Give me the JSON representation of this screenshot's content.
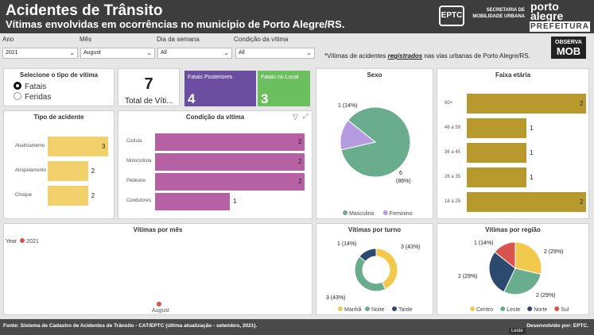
{
  "header": {
    "title": "Acidentes de Trânsito",
    "subtitle": "Vítimas envolvidas em ocorrências no município de Porto Alegre/RS.",
    "eptc": "EPTC",
    "secretaria": [
      "SECRETARIA DE",
      "MOBILIDADE URBANA"
    ],
    "porto_alegre": [
      "porto",
      "alegre"
    ],
    "prefeitura": "PREFEITURA"
  },
  "filters": [
    {
      "label": "Ano",
      "value": "2021"
    },
    {
      "label": "Mês",
      "value": "August"
    },
    {
      "label": "Dia da semana",
      "value": "All"
    },
    {
      "label": "Condição da vítima",
      "value": "All"
    }
  ],
  "note": {
    "pre": "*Vítimas de acidentes ",
    "bold": "registrados",
    "post": " nas vias urbanas de Porto Alegre/RS."
  },
  "observa": {
    "top": "OBSERVA",
    "bottom": "MOB"
  },
  "victim_type": {
    "title": "Selecione o tipo de vítima",
    "options": [
      "Fatais",
      "Feridas"
    ],
    "selected": "Fatais"
  },
  "total": {
    "value": "7",
    "label": "Total de Víti..."
  },
  "fatais_posteriores": {
    "label": "Fatais Posteriores",
    "value": "4",
    "color": "#6b4ea0"
  },
  "fatais_local": {
    "label": "Fatais no Local",
    "value": "3",
    "color": "#6cbf5e"
  },
  "colors": {
    "yellow": "#f2d06b",
    "purple": "#b561a4",
    "green": "#6aad8e",
    "lavender": "#b59be0",
    "gold": "#b8992e",
    "red": "#d9534f",
    "navy": "#2b4a6e",
    "leste": "#6aad8e",
    "centro": "#f2c94c"
  },
  "chart_data": [
    {
      "type": "bar",
      "orientation": "horizontal",
      "title": "Tipo de acidente",
      "categories": [
        "Abalroamento",
        "Atropelamento",
        "Choque"
      ],
      "values": [
        3,
        2,
        2
      ],
      "xlim": [
        0,
        3
      ]
    },
    {
      "type": "bar",
      "orientation": "horizontal",
      "title": "Condição da vítima",
      "categories": [
        "Ciclista",
        "Motociclista",
        "Pedestre",
        "Condutores"
      ],
      "values": [
        2,
        2,
        2,
        1
      ],
      "xlim": [
        0,
        2
      ]
    },
    {
      "type": "pie",
      "title": "Sexo",
      "categories": [
        "Masculino",
        "Feminino"
      ],
      "values": [
        6,
        1
      ],
      "labels": [
        "6\n(86%)",
        "1 (14%)"
      ]
    },
    {
      "type": "bar",
      "orientation": "horizontal",
      "title": "Faixa etária",
      "categories": [
        "60+",
        "46 a 59",
        "36 a 45",
        "26 a 35",
        "18 a 25"
      ],
      "values": [
        2,
        1,
        1,
        1,
        2
      ],
      "xlim": [
        0,
        2
      ]
    },
    {
      "type": "line",
      "title": "Vítimas por mês",
      "legend_title": "Year",
      "series": [
        {
          "name": "2021",
          "values": [
            7
          ]
        }
      ],
      "x": [
        "August"
      ]
    },
    {
      "type": "pie",
      "donut": true,
      "title": "Vítimas por turno",
      "categories": [
        "Manhã",
        "Noite",
        "Tarde"
      ],
      "values": [
        3,
        3,
        1
      ],
      "labels": [
        "3 (43%)",
        "3 (43%)",
        "1 (14%)"
      ]
    },
    {
      "type": "pie",
      "title": "Vítimas por região",
      "categories": [
        "Centro",
        "Leste",
        "Norte",
        "Sul"
      ],
      "values": [
        2,
        2,
        2,
        1
      ],
      "labels": [
        "2 (29%)",
        "2 (29%)",
        "2 (29%)",
        "1 (14%)"
      ]
    }
  ],
  "footer": {
    "source": "Fonte: Sistema de Cadastro de Acidentes de Trânsito - CAT/EPTC (última atualização - setembro, 2021).",
    "developed": "Desenvolvido por: EPTC.",
    "tooltip": "Leste"
  }
}
